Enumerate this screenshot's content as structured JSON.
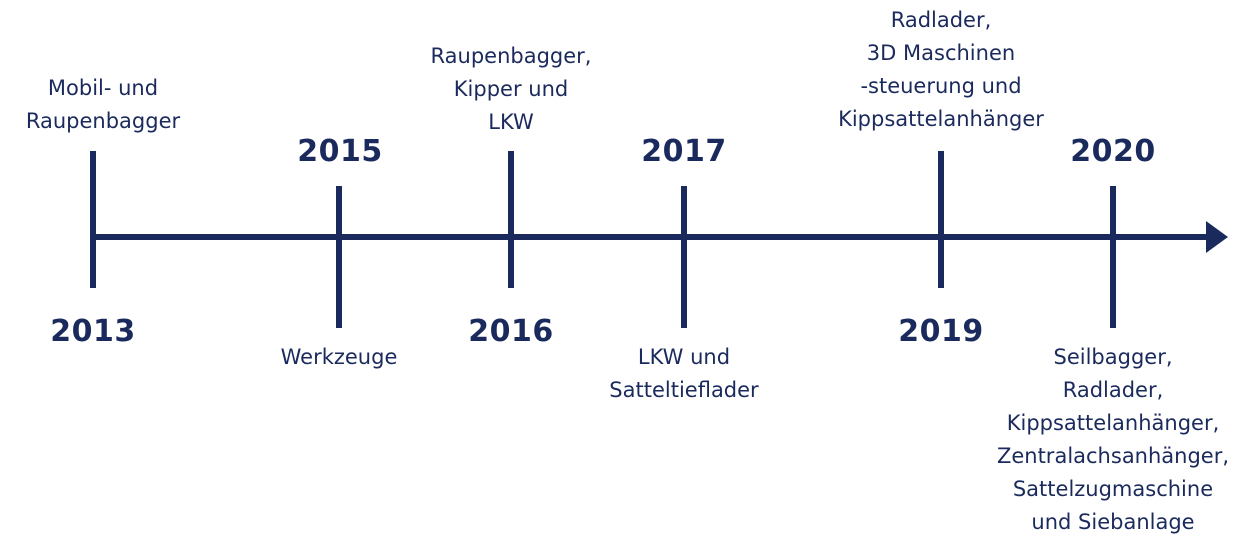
{
  "colors": {
    "line": "#1b2a5c",
    "text": "#1b2a5c"
  },
  "milestones": [
    {
      "year": "2013",
      "label_lines": [
        "Mobil- und",
        "Raupenbagger"
      ]
    },
    {
      "year": "2015",
      "label_lines": [
        "Werkzeuge"
      ]
    },
    {
      "year": "2016",
      "label_lines": [
        "Raupenbagger,",
        "Kipper und",
        "LKW"
      ]
    },
    {
      "year": "2017",
      "label_lines": [
        "LKW und",
        "Satteltieflader"
      ]
    },
    {
      "year": "2019",
      "label_lines": [
        "Radlader,",
        "3D Maschinen",
        "-steuerung und",
        "Kippsattelanhänger"
      ]
    },
    {
      "year": "2020",
      "label_lines": [
        "Seilbagger,",
        "Radlader,",
        "Kippsattelanhänger,",
        "Zentralachsanhänger,",
        "Sattelzugmaschine",
        "und Siebanlage"
      ]
    }
  ]
}
